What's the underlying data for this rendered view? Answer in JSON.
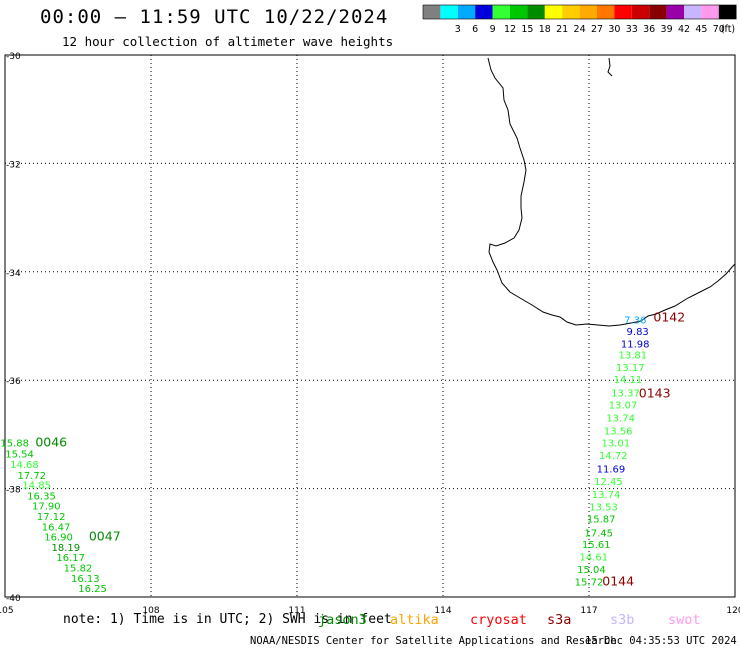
{
  "header": {
    "title": "00:00 – 11:59 UTC 10/22/2024",
    "subtitle": "12 hour collection of altimeter wave heights"
  },
  "colorbar": {
    "unit": "(ft)",
    "swatches": [
      {
        "color": "#808080",
        "label": ""
      },
      {
        "color": "#00ffff",
        "label": "3"
      },
      {
        "color": "#00aaff",
        "label": "6"
      },
      {
        "color": "#0000dd",
        "label": "9"
      },
      {
        "color": "#33ff33",
        "label": "12"
      },
      {
        "color": "#00c800",
        "label": "15"
      },
      {
        "color": "#008c00",
        "label": "18"
      },
      {
        "color": "#ffff00",
        "label": "21"
      },
      {
        "color": "#ffcc00",
        "label": "24"
      },
      {
        "color": "#ffaa00",
        "label": "27"
      },
      {
        "color": "#ff7700",
        "label": "30"
      },
      {
        "color": "#ff0000",
        "label": "33"
      },
      {
        "color": "#cc0000",
        "label": "36"
      },
      {
        "color": "#880000",
        "label": "39"
      },
      {
        "color": "#9900aa",
        "label": "42"
      },
      {
        "color": "#c8b4ff",
        "label": "45"
      },
      {
        "color": "#ff99ee",
        "label": "70"
      },
      {
        "color": "#000000",
        "label": ""
      }
    ]
  },
  "map": {
    "lon_ticks": [
      "105",
      "108",
      "111",
      "114",
      "117",
      "120"
    ],
    "lat_ticks": [
      "-30",
      "-32",
      "-34",
      "-36",
      "-38",
      "-40"
    ],
    "lon_range": [
      105,
      120
    ],
    "lat_range": [
      -30,
      -40
    ],
    "passes": [
      {
        "id": "0142",
        "color": "#8b0000",
        "lon": 118.65,
        "lat": -34.92
      },
      {
        "id": "0143",
        "color": "#8b0000",
        "lon": 118.35,
        "lat": -36.32
      },
      {
        "id": "0144",
        "color": "#8b0000",
        "lon": 117.6,
        "lat": -39.79
      },
      {
        "id": "0046",
        "color": "#008c00",
        "lon": 105.95,
        "lat": -37.22
      },
      {
        "id": "0047",
        "color": "#008c00",
        "lon": 107.05,
        "lat": -38.96
      }
    ],
    "readings": [
      {
        "v": "7.36",
        "c": "#00aaff",
        "lon": 117.95,
        "lat": -34.95
      },
      {
        "v": "9.83",
        "c": "#0000dd",
        "lon": 118.0,
        "lat": -35.17
      },
      {
        "v": "11.98",
        "c": "#0000dd",
        "lon": 117.95,
        "lat": -35.4
      },
      {
        "v": "13.81",
        "c": "#33ff33",
        "lon": 117.9,
        "lat": -35.6
      },
      {
        "v": "13.17",
        "c": "#33ff33",
        "lon": 117.85,
        "lat": -35.83
      },
      {
        "v": "14.11",
        "c": "#33ff33",
        "lon": 117.8,
        "lat": -36.05
      },
      {
        "v": "13.37",
        "c": "#33ff33",
        "lon": 117.75,
        "lat": -36.3
      },
      {
        "v": "13.07",
        "c": "#33ff33",
        "lon": 117.7,
        "lat": -36.52
      },
      {
        "v": "13.74",
        "c": "#33ff33",
        "lon": 117.65,
        "lat": -36.76
      },
      {
        "v": "13.56",
        "c": "#33ff33",
        "lon": 117.6,
        "lat": -37.0
      },
      {
        "v": "13.01",
        "c": "#33ff33",
        "lon": 117.55,
        "lat": -37.22
      },
      {
        "v": "14.72",
        "c": "#33ff33",
        "lon": 117.5,
        "lat": -37.45
      },
      {
        "v": "11.69",
        "c": "#0000dd",
        "lon": 117.45,
        "lat": -37.7
      },
      {
        "v": "12.45",
        "c": "#33ff33",
        "lon": 117.4,
        "lat": -37.93
      },
      {
        "v": "13.74",
        "c": "#33ff33",
        "lon": 117.35,
        "lat": -38.17
      },
      {
        "v": "13.53",
        "c": "#33ff33",
        "lon": 117.3,
        "lat": -38.4
      },
      {
        "v": "15.87",
        "c": "#00c800",
        "lon": 117.25,
        "lat": -38.63
      },
      {
        "v": "17.45",
        "c": "#00c800",
        "lon": 117.2,
        "lat": -38.88
      },
      {
        "v": "15.61",
        "c": "#00c800",
        "lon": 117.15,
        "lat": -39.1
      },
      {
        "v": "14.61",
        "c": "#33ff33",
        "lon": 117.1,
        "lat": -39.33
      },
      {
        "v": "15.04",
        "c": "#00c800",
        "lon": 117.05,
        "lat": -39.56
      },
      {
        "v": "15.72",
        "c": "#00c800",
        "lon": 117.0,
        "lat": -39.79
      },
      {
        "v": "15.88",
        "c": "#00c800",
        "lon": 105.2,
        "lat": -37.22
      },
      {
        "v": "15.54",
        "c": "#00c800",
        "lon": 105.3,
        "lat": -37.43
      },
      {
        "v": "14.68",
        "c": "#33ff33",
        "lon": 105.4,
        "lat": -37.62
      },
      {
        "v": "17.72",
        "c": "#00c800",
        "lon": 105.55,
        "lat": -37.82
      },
      {
        "v": "14.85",
        "c": "#33ff33",
        "lon": 105.65,
        "lat": -38.0
      },
      {
        "v": "16.35",
        "c": "#00c800",
        "lon": 105.75,
        "lat": -38.2
      },
      {
        "v": "17.90",
        "c": "#00c800",
        "lon": 105.85,
        "lat": -38.39
      },
      {
        "v": "17.12",
        "c": "#00c800",
        "lon": 105.95,
        "lat": -38.58
      },
      {
        "v": "16.47",
        "c": "#00c800",
        "lon": 106.05,
        "lat": -38.77
      },
      {
        "v": "16.90",
        "c": "#00c800",
        "lon": 106.1,
        "lat": -38.96
      },
      {
        "v": "18.19",
        "c": "#008c00",
        "lon": 106.25,
        "lat": -39.15
      },
      {
        "v": "16.17",
        "c": "#00c800",
        "lon": 106.35,
        "lat": -39.34
      },
      {
        "v": "15.82",
        "c": "#00c800",
        "lon": 106.5,
        "lat": -39.53
      },
      {
        "v": "16.13",
        "c": "#00c800",
        "lon": 106.65,
        "lat": -39.72
      },
      {
        "v": "16.25",
        "c": "#00c800",
        "lon": 106.8,
        "lat": -39.91
      }
    ]
  },
  "note": "note: 1) Time is in UTC; 2) SWH is in feet",
  "satellites": [
    {
      "name": "jason3",
      "color": "#008c00"
    },
    {
      "name": "altika",
      "color": "#ffa500"
    },
    {
      "name": "cryosat",
      "color": "#ff0000"
    },
    {
      "name": "s3a",
      "color": "#8b0000"
    },
    {
      "name": "s3b",
      "color": "#c8b4ff"
    },
    {
      "name": "swot",
      "color": "#ff99ee"
    }
  ],
  "footer": {
    "credit": "NOAA/NESDIS Center for Satellite Applications and Research",
    "timestamp": "15 Dec 04:35:53 UTC 2024"
  }
}
